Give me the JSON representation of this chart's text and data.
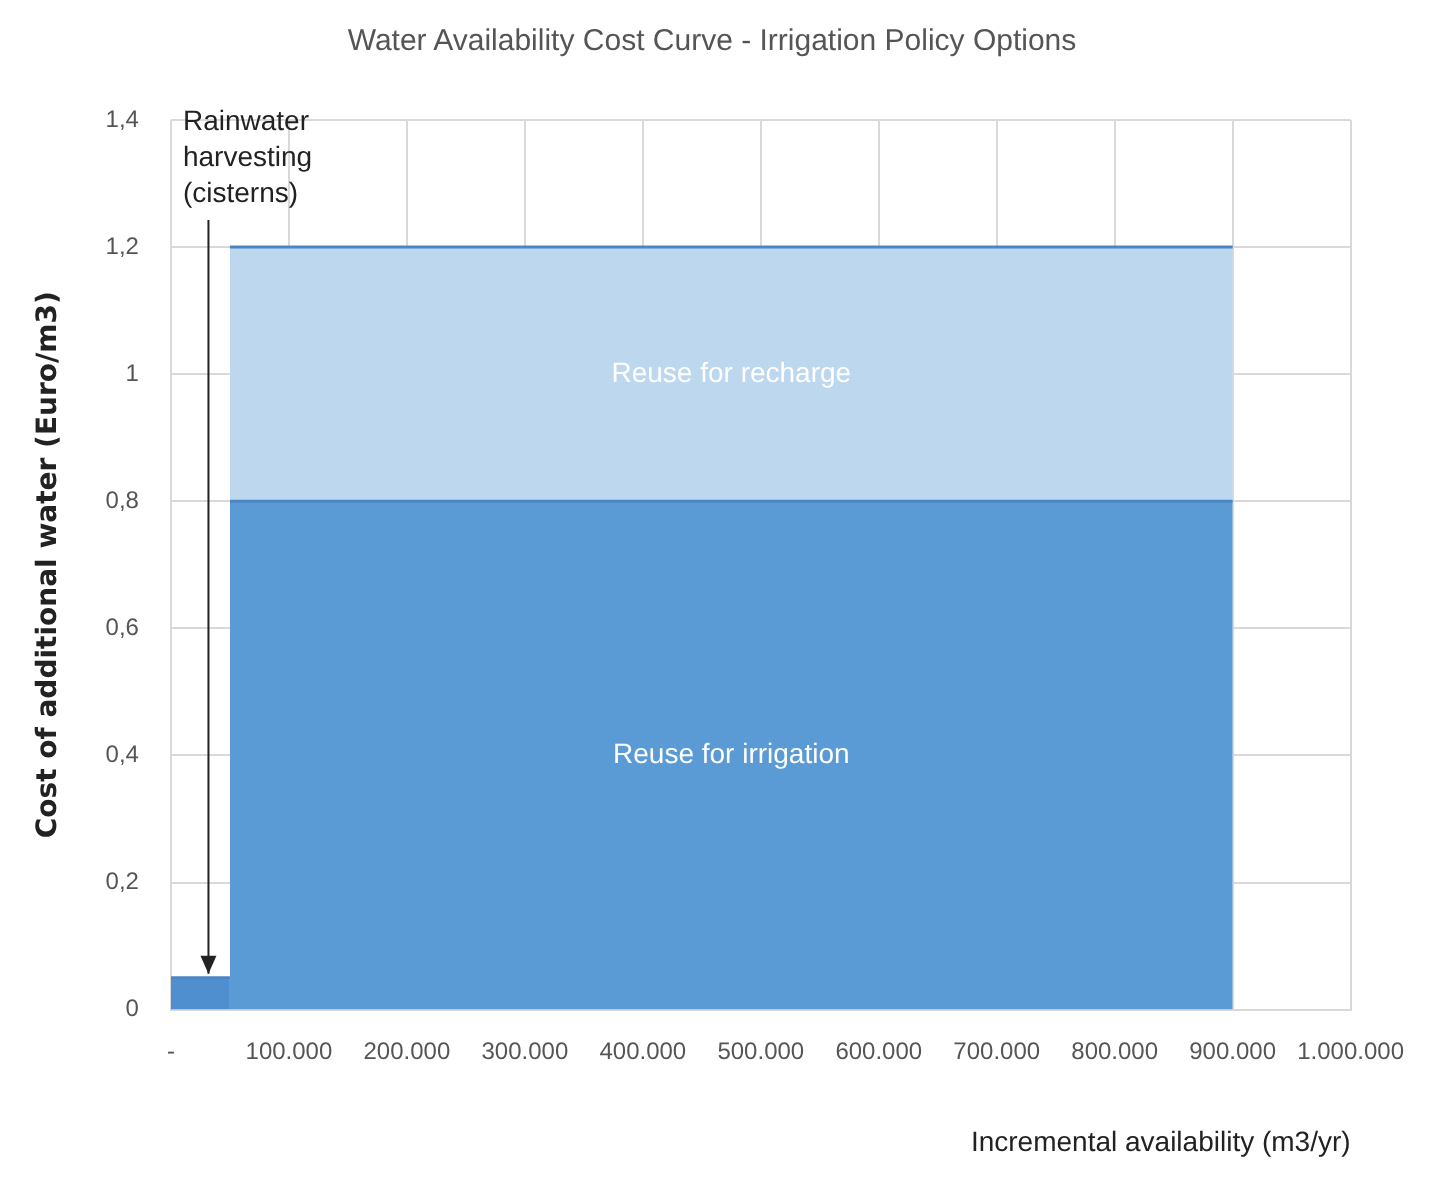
{
  "chart_data": {
    "type": "area",
    "title": "Water Availability Cost Curve - Irrigation Policy Options",
    "xlabel": "Incremental availability (m3/yr)",
    "ylabel": "Cost of additional water (Euro/m3)",
    "grid": true,
    "legend": false,
    "xlim": [
      0,
      1000000
    ],
    "xticks": [
      {
        "value": 0,
        "label": "-"
      },
      {
        "value": 100000,
        "label": "100.000"
      },
      {
        "value": 200000,
        "label": "200.000"
      },
      {
        "value": 300000,
        "label": "300.000"
      },
      {
        "value": 400000,
        "label": "400.000"
      },
      {
        "value": 500000,
        "label": "500.000"
      },
      {
        "value": 600000,
        "label": "600.000"
      },
      {
        "value": 700000,
        "label": "700.000"
      },
      {
        "value": 800000,
        "label": "800.000"
      },
      {
        "value": 900000,
        "label": "900.000"
      },
      {
        "value": 1000000,
        "label": "1.000.000"
      }
    ],
    "ylim": [
      0,
      1.4
    ],
    "yticks": [
      0,
      {
        "value": 0.2,
        "label": "0,2"
      },
      {
        "value": 0.4,
        "label": "0,4"
      },
      {
        "value": 0.6,
        "label": "0,6"
      },
      {
        "value": 0.8,
        "label": "0,8"
      },
      1,
      {
        "value": 1.2,
        "label": "1,2"
      },
      {
        "value": 1.4,
        "label": "1,4"
      }
    ],
    "series": [
      {
        "name": "Rainwater harvesting (cisterns)",
        "color": "#4f8fcf",
        "x": [
          0,
          50000
        ],
        "values": [
          0.05,
          0.05
        ]
      },
      {
        "name": "Reuse for irrigation",
        "color": "#5b9bd5",
        "x": [
          50000,
          900000
        ],
        "values": [
          0.8,
          0.8
        ]
      },
      {
        "name": "Reuse for recharge",
        "color": "#bdd7ee",
        "x": [
          50000,
          900000
        ],
        "values": [
          1.2,
          1.2
        ]
      }
    ]
  }
}
